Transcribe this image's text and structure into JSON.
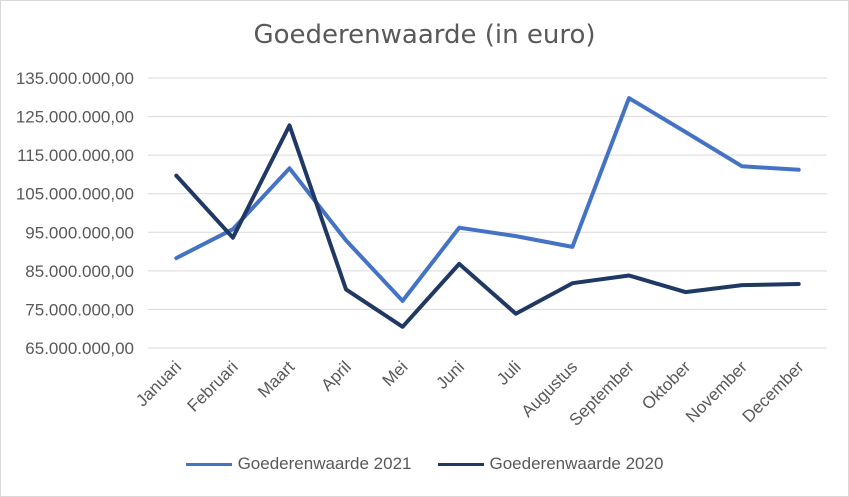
{
  "chart_data": {
    "type": "line",
    "title": "Goederenwaarde (in euro)",
    "categories": [
      "Januari",
      "Februari",
      "Maart",
      "April",
      "Mei",
      "Juni",
      "Juli",
      "Augustus",
      "September",
      "Oktober",
      "November",
      "December"
    ],
    "ylim": [
      65000000,
      135000000
    ],
    "yticks": [
      65000000,
      75000000,
      85000000,
      95000000,
      105000000,
      115000000,
      125000000,
      135000000
    ],
    "ytick_labels": [
      "65.000.000,00",
      "75.000.000,00",
      "85.000.000,00",
      "95.000.000,00",
      "105.000.000,00",
      "115.000.000,00",
      "125.000.000,00",
      "135.000.000,00"
    ],
    "grid": true,
    "legend": "bottom",
    "series": [
      {
        "name": "Goederenwaarde 2021",
        "color": "#4472c4",
        "values": [
          88300000,
          95800000,
          111600000,
          92900000,
          77200000,
          96200000,
          94000000,
          91200000,
          129800000,
          121000000,
          112100000,
          111200000
        ]
      },
      {
        "name": "Goederenwaarde 2020",
        "color": "#203864",
        "values": [
          109700000,
          93600000,
          122700000,
          80200000,
          70500000,
          86800000,
          73900000,
          81800000,
          83800000,
          79500000,
          81300000,
          81600000
        ]
      }
    ]
  }
}
